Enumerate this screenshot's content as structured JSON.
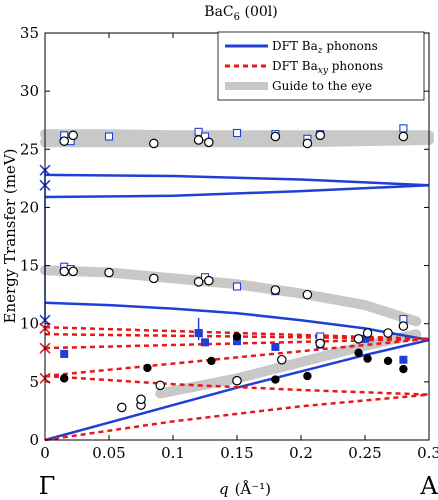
{
  "chart_data": {
    "type": "scatter",
    "title_main": "BaC",
    "title_sub": "6",
    "title_suffix": " (00l)",
    "xlabel_var": "q",
    "xlabel_unit": "(Å⁻¹)",
    "ylabel": "Energy Transfer (meV)",
    "xlim": [
      0,
      0.3
    ],
    "ylim": [
      0,
      35
    ],
    "xticks": [
      "0",
      "0.05",
      "0.1",
      "0.15",
      "0.2",
      "0.25",
      "0.3"
    ],
    "yticks": [
      "0",
      "5",
      "10",
      "15",
      "20",
      "25",
      "30",
      "35"
    ],
    "endpoint_labels": {
      "left": "Γ",
      "right": "A"
    },
    "legend": {
      "position": "top-right",
      "entries": [
        {
          "label_main": "DFT Ba",
          "label_sub": "z",
          "label_tail": " phonons",
          "style": "blue-solid"
        },
        {
          "label_main": "DFT Ba",
          "label_sub": "xy",
          "label_tail": " phonons",
          "style": "red-dashed"
        },
        {
          "label_main": "Guide to the eye",
          "label_sub": "",
          "label_tail": "",
          "style": "gray-band"
        }
      ]
    },
    "colors": {
      "blue": "#1f3fd6",
      "red": "#e81818",
      "gray": "#c8c8c8",
      "black": "#000000"
    },
    "guide_bands": [
      {
        "x": [
          0,
          0.05,
          0.1,
          0.15,
          0.2,
          0.25,
          0.3
        ],
        "y": [
          26.3,
          26.3,
          26.2,
          26.2,
          26.2,
          26.2,
          26.2
        ]
      },
      {
        "x": [
          0,
          0.05,
          0.1,
          0.15,
          0.2,
          0.25,
          0.3
        ],
        "y": [
          25.6,
          25.6,
          25.6,
          25.6,
          25.6,
          25.7,
          25.8
        ]
      },
      {
        "x": [
          0,
          0.05,
          0.1,
          0.15,
          0.2,
          0.25,
          0.29
        ],
        "y": [
          14.6,
          14.4,
          13.9,
          13.4,
          12.6,
          11.6,
          10.2
        ]
      },
      {
        "x": [
          0.09,
          0.15,
          0.2,
          0.25,
          0.29
        ],
        "y": [
          4.0,
          5.3,
          6.7,
          8.1,
          9.1
        ]
      }
    ],
    "dft_z": [
      {
        "x": [
          0,
          0.1,
          0.2,
          0.3
        ],
        "y": [
          22.8,
          22.7,
          22.4,
          21.9
        ]
      },
      {
        "x": [
          0,
          0.1,
          0.2,
          0.3
        ],
        "y": [
          20.9,
          21.0,
          21.4,
          21.9
        ]
      },
      {
        "x": [
          0,
          0.05,
          0.1,
          0.15,
          0.2,
          0.25,
          0.3
        ],
        "y": [
          11.8,
          11.6,
          11.3,
          10.9,
          10.3,
          9.6,
          8.6
        ]
      },
      {
        "x": [
          0,
          0.05,
          0.1,
          0.15,
          0.2,
          0.25,
          0.3
        ],
        "y": [
          0,
          1.5,
          3.0,
          4.5,
          5.9,
          7.3,
          8.6
        ]
      }
    ],
    "dft_z_vertical": {
      "x": 0,
      "y": [
        10.3,
        23.1
      ]
    },
    "dft_xy": [
      {
        "x": [
          0,
          0.3
        ],
        "y": [
          9.7,
          8.7
        ]
      },
      {
        "x": [
          0,
          0.3
        ],
        "y": [
          9.1,
          8.7
        ]
      },
      {
        "x": [
          0,
          0.3
        ],
        "y": [
          7.9,
          8.7
        ]
      },
      {
        "x": [
          0,
          0.3
        ],
        "y": [
          5.5,
          8.7
        ]
      },
      {
        "x": [
          0,
          0.1,
          0.2,
          0.3
        ],
        "y": [
          5.5,
          4.8,
          4.3,
          3.9
        ]
      },
      {
        "x": [
          0,
          0.1,
          0.2,
          0.3
        ],
        "y": [
          0,
          1.6,
          2.9,
          3.9
        ]
      }
    ],
    "gamma_crosses_blue": [
      23.2,
      21.9,
      10.3
    ],
    "gamma_crosses_red": [
      9.6,
      7.9,
      5.3
    ],
    "open_squares": [
      {
        "x": 0.015,
        "y": 26.2
      },
      {
        "x": 0.02,
        "y": 25.7
      },
      {
        "x": 0.05,
        "y": 26.1
      },
      {
        "x": 0.12,
        "y": 26.5
      },
      {
        "x": 0.125,
        "y": 26.1
      },
      {
        "x": 0.15,
        "y": 26.4
      },
      {
        "x": 0.18,
        "y": 26.3
      },
      {
        "x": 0.205,
        "y": 25.9
      },
      {
        "x": 0.215,
        "y": 26.3
      },
      {
        "x": 0.28,
        "y": 26.8
      },
      {
        "x": 0.015,
        "y": 14.9
      },
      {
        "x": 0.02,
        "y": 14.7
      },
      {
        "x": 0.125,
        "y": 14.0
      },
      {
        "x": 0.15,
        "y": 13.2
      },
      {
        "x": 0.18,
        "y": 12.8
      },
      {
        "x": 0.28,
        "y": 10.4
      },
      {
        "x": 0.215,
        "y": 8.9
      }
    ],
    "filled_squares": [
      {
        "x": 0.015,
        "y": 7.4
      },
      {
        "x": 0.12,
        "y": 9.2
      },
      {
        "x": 0.125,
        "y": 8.4
      },
      {
        "x": 0.15,
        "y": 8.5
      },
      {
        "x": 0.18,
        "y": 8.0
      },
      {
        "x": 0.215,
        "y": 8.2
      },
      {
        "x": 0.25,
        "y": 8.7
      },
      {
        "x": 0.28,
        "y": 6.9
      }
    ],
    "open_circles": [
      {
        "x": 0.015,
        "y": 25.7
      },
      {
        "x": 0.022,
        "y": 26.2
      },
      {
        "x": 0.085,
        "y": 25.5
      },
      {
        "x": 0.12,
        "y": 25.8
      },
      {
        "x": 0.128,
        "y": 25.6
      },
      {
        "x": 0.18,
        "y": 26.1
      },
      {
        "x": 0.205,
        "y": 25.5
      },
      {
        "x": 0.215,
        "y": 26.2
      },
      {
        "x": 0.28,
        "y": 26.1
      },
      {
        "x": 0.015,
        "y": 14.5
      },
      {
        "x": 0.022,
        "y": 14.5
      },
      {
        "x": 0.05,
        "y": 14.4
      },
      {
        "x": 0.085,
        "y": 13.9
      },
      {
        "x": 0.12,
        "y": 13.6
      },
      {
        "x": 0.128,
        "y": 13.7
      },
      {
        "x": 0.18,
        "y": 12.9
      },
      {
        "x": 0.205,
        "y": 12.5
      },
      {
        "x": 0.28,
        "y": 9.8
      },
      {
        "x": 0.06,
        "y": 2.8
      },
      {
        "x": 0.075,
        "y": 3.0
      },
      {
        "x": 0.075,
        "y": 3.5
      },
      {
        "x": 0.09,
        "y": 4.7
      },
      {
        "x": 0.15,
        "y": 5.1
      },
      {
        "x": 0.185,
        "y": 6.9
      },
      {
        "x": 0.215,
        "y": 8.3
      },
      {
        "x": 0.245,
        "y": 8.7
      },
      {
        "x": 0.252,
        "y": 9.2
      },
      {
        "x": 0.268,
        "y": 9.2
      }
    ],
    "filled_circles": [
      {
        "x": 0.015,
        "y": 5.3
      },
      {
        "x": 0.08,
        "y": 6.2
      },
      {
        "x": 0.13,
        "y": 6.8
      },
      {
        "x": 0.15,
        "y": 8.9
      },
      {
        "x": 0.18,
        "y": 5.2
      },
      {
        "x": 0.205,
        "y": 5.5
      },
      {
        "x": 0.245,
        "y": 7.5
      },
      {
        "x": 0.252,
        "y": 7.0
      },
      {
        "x": 0.268,
        "y": 6.8
      },
      {
        "x": 0.28,
        "y": 6.1
      }
    ],
    "error_bar": {
      "x": 0.12,
      "y_low": 8.6,
      "y_high": 10.5
    }
  }
}
